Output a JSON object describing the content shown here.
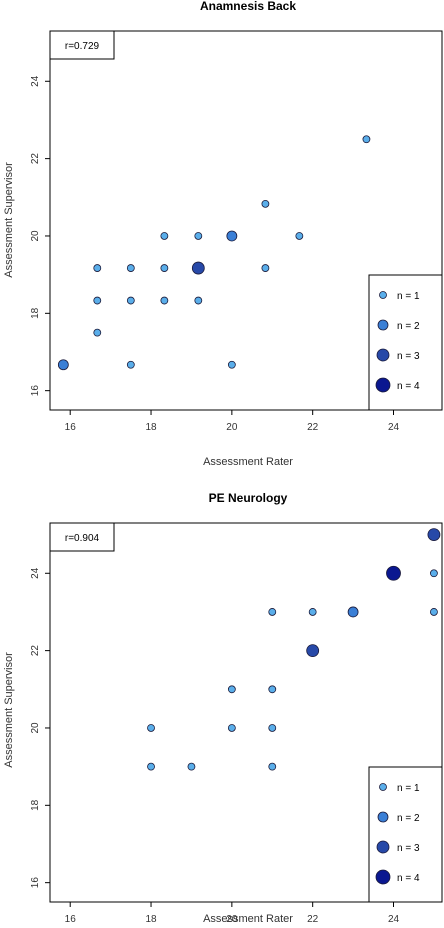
{
  "chart_data": [
    {
      "type": "scatter",
      "title": "Anamnesis Back",
      "xlabel": "Assessment Rater",
      "ylabel": "Assessment Supervisor",
      "annotation": "r=0.729",
      "xlim": [
        15.5,
        25.2
      ],
      "ylim": [
        15.5,
        25.3
      ],
      "xticks": [
        "16",
        "18",
        "20",
        "22",
        "24"
      ],
      "yticks": [
        "16",
        "18",
        "20",
        "22",
        "24"
      ],
      "legend": {
        "position": "bottom-right",
        "entries": [
          "n = 1",
          "n = 2",
          "n = 3",
          "n = 4"
        ]
      },
      "points": [
        {
          "x": 15.83,
          "y": 16.67,
          "n": 2
        },
        {
          "x": 16.67,
          "y": 17.5,
          "n": 1
        },
        {
          "x": 16.67,
          "y": 18.33,
          "n": 1
        },
        {
          "x": 16.67,
          "y": 19.17,
          "n": 1
        },
        {
          "x": 17.5,
          "y": 16.67,
          "n": 1
        },
        {
          "x": 17.5,
          "y": 18.33,
          "n": 1
        },
        {
          "x": 17.5,
          "y": 19.17,
          "n": 1
        },
        {
          "x": 18.33,
          "y": 18.33,
          "n": 1
        },
        {
          "x": 18.33,
          "y": 19.17,
          "n": 1
        },
        {
          "x": 18.33,
          "y": 20.0,
          "n": 1
        },
        {
          "x": 19.17,
          "y": 18.33,
          "n": 1
        },
        {
          "x": 19.17,
          "y": 19.17,
          "n": 3
        },
        {
          "x": 19.17,
          "y": 20.0,
          "n": 1
        },
        {
          "x": 20.0,
          "y": 16.67,
          "n": 1
        },
        {
          "x": 20.0,
          "y": 20.0,
          "n": 2
        },
        {
          "x": 20.83,
          "y": 19.17,
          "n": 1
        },
        {
          "x": 20.83,
          "y": 20.83,
          "n": 1
        },
        {
          "x": 21.67,
          "y": 20.0,
          "n": 1
        },
        {
          "x": 23.33,
          "y": 22.5,
          "n": 1
        }
      ]
    },
    {
      "type": "scatter",
      "title": "PE Neurology",
      "xlabel": "Assessment Rater",
      "ylabel": "Assessment Supervisor",
      "annotation": "r=0.904",
      "xlim": [
        15.5,
        25.2
      ],
      "ylim": [
        15.5,
        25.3
      ],
      "xticks": [
        "16",
        "18",
        "20",
        "22",
        "24"
      ],
      "yticks": [
        "16",
        "18",
        "20",
        "22",
        "24"
      ],
      "legend": {
        "position": "bottom-right",
        "entries": [
          "n = 1",
          "n = 2",
          "n = 3",
          "n = 4"
        ]
      },
      "points": [
        {
          "x": 18,
          "y": 19,
          "n": 1
        },
        {
          "x": 18,
          "y": 20,
          "n": 1
        },
        {
          "x": 19,
          "y": 19,
          "n": 1
        },
        {
          "x": 20,
          "y": 20,
          "n": 1
        },
        {
          "x": 20,
          "y": 21,
          "n": 1
        },
        {
          "x": 21,
          "y": 19,
          "n": 1
        },
        {
          "x": 21,
          "y": 20,
          "n": 1
        },
        {
          "x": 21,
          "y": 21,
          "n": 1
        },
        {
          "x": 21,
          "y": 23,
          "n": 1
        },
        {
          "x": 22,
          "y": 22,
          "n": 3
        },
        {
          "x": 22,
          "y": 23,
          "n": 1
        },
        {
          "x": 23,
          "y": 23,
          "n": 2
        },
        {
          "x": 24,
          "y": 24,
          "n": 4
        },
        {
          "x": 25,
          "y": 23,
          "n": 1
        },
        {
          "x": 25,
          "y": 24,
          "n": 1
        },
        {
          "x": 25,
          "y": 25,
          "n": 3
        }
      ]
    }
  ],
  "colors": {
    "n1": "#5aaeea",
    "n2": "#3a7fd6",
    "n3": "#2749a8",
    "n4": "#0a1790",
    "stroke": "#1a1a3a"
  }
}
